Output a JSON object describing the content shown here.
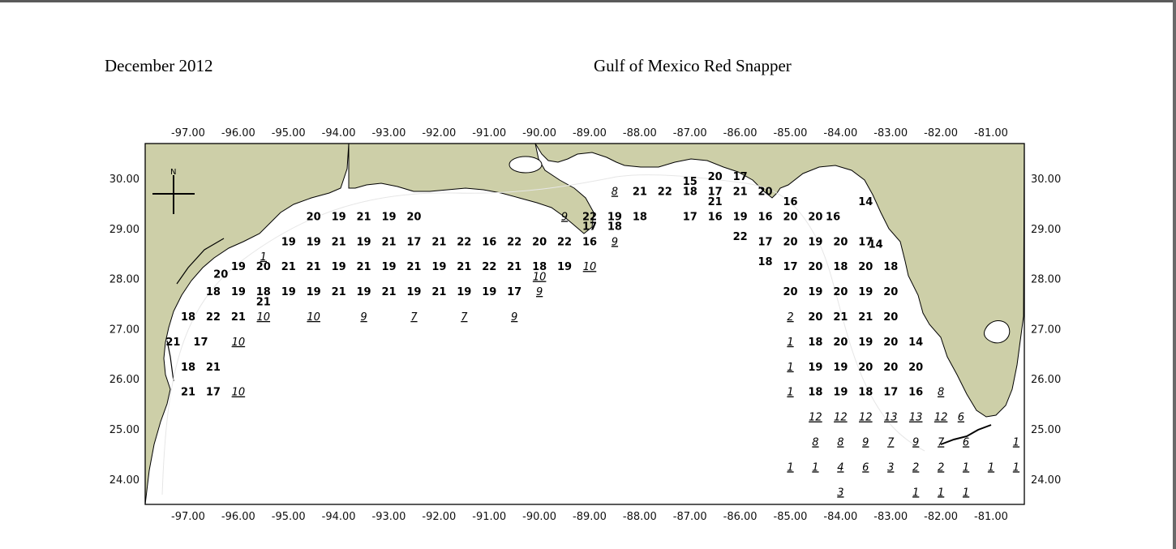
{
  "header": {
    "date": "December 2012",
    "title": "Gulf of Mexico Red Snapper"
  },
  "colors": {
    "land": "#cdcfa8",
    "water": "#ffffff",
    "text": "#000000",
    "frame": "#000000"
  },
  "axes": {
    "lon_ticks": [
      "-97.00",
      "-96.00",
      "-95.00",
      "-94.00",
      "-93.00",
      "-92.00",
      "-91.00",
      "-90.00",
      "-89.00",
      "-88.00",
      "-87.00",
      "-86.00",
      "-85.00",
      "-84.00",
      "-83.00",
      "-82.00",
      "-81.00"
    ],
    "lat_ticks": [
      "30.00",
      "29.00",
      "28.00",
      "27.00",
      "26.00",
      "25.00",
      "24.00"
    ]
  },
  "compass": {
    "label": "N"
  },
  "observations": [
    {
      "lon": -88.5,
      "lat": 29.75,
      "v": "8",
      "it": true
    },
    {
      "lon": -88.0,
      "lat": 29.75,
      "v": "21"
    },
    {
      "lon": -87.5,
      "lat": 29.75,
      "v": "22"
    },
    {
      "lon": -87.0,
      "lat": 29.75,
      "v": "18"
    },
    {
      "lon": -87.0,
      "lat": 29.95,
      "v": "15"
    },
    {
      "lon": -86.5,
      "lat": 29.75,
      "v": "17"
    },
    {
      "lon": -86.5,
      "lat": 29.55,
      "v": "21"
    },
    {
      "lon": -86.5,
      "lat": 30.05,
      "v": "20"
    },
    {
      "lon": -86.0,
      "lat": 29.75,
      "v": "21"
    },
    {
      "lon": -86.0,
      "lat": 30.05,
      "v": "17"
    },
    {
      "lon": -85.5,
      "lat": 29.75,
      "v": "20"
    },
    {
      "lon": -85.0,
      "lat": 29.55,
      "v": "16"
    },
    {
      "lon": -83.5,
      "lat": 29.55,
      "v": "14"
    },
    {
      "lon": -94.5,
      "lat": 29.25,
      "v": "20"
    },
    {
      "lon": -94.0,
      "lat": 29.25,
      "v": "19"
    },
    {
      "lon": -93.5,
      "lat": 29.25,
      "v": "21"
    },
    {
      "lon": -93.0,
      "lat": 29.25,
      "v": "19"
    },
    {
      "lon": -92.5,
      "lat": 29.25,
      "v": "20"
    },
    {
      "lon": -89.5,
      "lat": 29.25,
      "v": "9",
      "it": true
    },
    {
      "lon": -89.0,
      "lat": 29.25,
      "v": "22"
    },
    {
      "lon": -88.5,
      "lat": 29.25,
      "v": "19"
    },
    {
      "lon": -88.0,
      "lat": 29.25,
      "v": "18"
    },
    {
      "lon": -89.0,
      "lat": 29.05,
      "v": "17"
    },
    {
      "lon": -88.5,
      "lat": 29.05,
      "v": "18"
    },
    {
      "lon": -87.0,
      "lat": 29.25,
      "v": "17"
    },
    {
      "lon": -86.5,
      "lat": 29.25,
      "v": "16"
    },
    {
      "lon": -86.0,
      "lat": 29.25,
      "v": "19"
    },
    {
      "lon": -85.5,
      "lat": 29.25,
      "v": "16"
    },
    {
      "lon": -85.0,
      "lat": 29.25,
      "v": "20"
    },
    {
      "lon": -84.5,
      "lat": 29.25,
      "v": "20"
    },
    {
      "lon": -84.15,
      "lat": 29.25,
      "v": "16"
    },
    {
      "lon": -95.0,
      "lat": 28.75,
      "v": "19"
    },
    {
      "lon": -94.5,
      "lat": 28.75,
      "v": "19"
    },
    {
      "lon": -94.0,
      "lat": 28.75,
      "v": "21"
    },
    {
      "lon": -93.5,
      "lat": 28.75,
      "v": "19"
    },
    {
      "lon": -93.0,
      "lat": 28.75,
      "v": "21"
    },
    {
      "lon": -92.5,
      "lat": 28.75,
      "v": "17"
    },
    {
      "lon": -92.0,
      "lat": 28.75,
      "v": "21"
    },
    {
      "lon": -91.5,
      "lat": 28.75,
      "v": "22"
    },
    {
      "lon": -91.0,
      "lat": 28.75,
      "v": "16"
    },
    {
      "lon": -90.5,
      "lat": 28.75,
      "v": "22"
    },
    {
      "lon": -90.0,
      "lat": 28.75,
      "v": "20"
    },
    {
      "lon": -89.5,
      "lat": 28.75,
      "v": "22"
    },
    {
      "lon": -89.0,
      "lat": 28.75,
      "v": "16"
    },
    {
      "lon": -88.5,
      "lat": 28.75,
      "v": "9",
      "it": true
    },
    {
      "lon": -86.0,
      "lat": 28.85,
      "v": "22"
    },
    {
      "lon": -85.5,
      "lat": 28.75,
      "v": "17"
    },
    {
      "lon": -85.0,
      "lat": 28.75,
      "v": "20"
    },
    {
      "lon": -84.5,
      "lat": 28.75,
      "v": "19"
    },
    {
      "lon": -84.0,
      "lat": 28.75,
      "v": "20"
    },
    {
      "lon": -83.5,
      "lat": 28.75,
      "v": "17"
    },
    {
      "lon": -83.3,
      "lat": 28.7,
      "v": "14"
    },
    {
      "lon": -95.5,
      "lat": 28.45,
      "v": "1",
      "it": true
    },
    {
      "lon": -96.0,
      "lat": 28.25,
      "v": "19"
    },
    {
      "lon": -96.35,
      "lat": 28.1,
      "v": "20"
    },
    {
      "lon": -95.5,
      "lat": 28.25,
      "v": "20"
    },
    {
      "lon": -95.0,
      "lat": 28.25,
      "v": "21"
    },
    {
      "lon": -94.5,
      "lat": 28.25,
      "v": "21"
    },
    {
      "lon": -94.0,
      "lat": 28.25,
      "v": "19"
    },
    {
      "lon": -93.5,
      "lat": 28.25,
      "v": "21"
    },
    {
      "lon": -93.0,
      "lat": 28.25,
      "v": "19"
    },
    {
      "lon": -92.5,
      "lat": 28.25,
      "v": "21"
    },
    {
      "lon": -92.0,
      "lat": 28.25,
      "v": "19"
    },
    {
      "lon": -91.5,
      "lat": 28.25,
      "v": "21"
    },
    {
      "lon": -91.0,
      "lat": 28.25,
      "v": "22"
    },
    {
      "lon": -90.5,
      "lat": 28.25,
      "v": "21"
    },
    {
      "lon": -90.0,
      "lat": 28.25,
      "v": "18"
    },
    {
      "lon": -90.0,
      "lat": 28.05,
      "v": "10",
      "it": true
    },
    {
      "lon": -89.5,
      "lat": 28.25,
      "v": "19"
    },
    {
      "lon": -89.0,
      "lat": 28.25,
      "v": "10",
      "it": true
    },
    {
      "lon": -85.5,
      "lat": 28.35,
      "v": "18"
    },
    {
      "lon": -85.0,
      "lat": 28.25,
      "v": "17"
    },
    {
      "lon": -84.5,
      "lat": 28.25,
      "v": "20"
    },
    {
      "lon": -84.0,
      "lat": 28.25,
      "v": "18"
    },
    {
      "lon": -83.5,
      "lat": 28.25,
      "v": "20"
    },
    {
      "lon": -83.0,
      "lat": 28.25,
      "v": "18"
    },
    {
      "lon": -96.5,
      "lat": 27.75,
      "v": "18"
    },
    {
      "lon": -96.0,
      "lat": 27.75,
      "v": "19"
    },
    {
      "lon": -95.5,
      "lat": 27.75,
      "v": "18"
    },
    {
      "lon": -95.5,
      "lat": 27.55,
      "v": "21"
    },
    {
      "lon": -95.0,
      "lat": 27.75,
      "v": "19"
    },
    {
      "lon": -94.5,
      "lat": 27.75,
      "v": "19"
    },
    {
      "lon": -94.0,
      "lat": 27.75,
      "v": "21"
    },
    {
      "lon": -93.5,
      "lat": 27.75,
      "v": "19"
    },
    {
      "lon": -93.0,
      "lat": 27.75,
      "v": "21"
    },
    {
      "lon": -92.5,
      "lat": 27.75,
      "v": "19"
    },
    {
      "lon": -92.0,
      "lat": 27.75,
      "v": "21"
    },
    {
      "lon": -91.5,
      "lat": 27.75,
      "v": "19"
    },
    {
      "lon": -91.0,
      "lat": 27.75,
      "v": "19"
    },
    {
      "lon": -90.5,
      "lat": 27.75,
      "v": "17"
    },
    {
      "lon": -90.0,
      "lat": 27.75,
      "v": "9",
      "it": true
    },
    {
      "lon": -85.0,
      "lat": 27.75,
      "v": "20"
    },
    {
      "lon": -84.5,
      "lat": 27.75,
      "v": "19"
    },
    {
      "lon": -84.0,
      "lat": 27.75,
      "v": "20"
    },
    {
      "lon": -83.5,
      "lat": 27.75,
      "v": "19"
    },
    {
      "lon": -83.0,
      "lat": 27.75,
      "v": "20"
    },
    {
      "lon": -97.0,
      "lat": 27.25,
      "v": "18"
    },
    {
      "lon": -96.5,
      "lat": 27.25,
      "v": "22"
    },
    {
      "lon": -96.0,
      "lat": 27.25,
      "v": "21"
    },
    {
      "lon": -95.5,
      "lat": 27.25,
      "v": "10",
      "it": true
    },
    {
      "lon": -94.5,
      "lat": 27.25,
      "v": "10",
      "it": true
    },
    {
      "lon": -93.5,
      "lat": 27.25,
      "v": "9",
      "it": true
    },
    {
      "lon": -92.5,
      "lat": 27.25,
      "v": "7",
      "it": true
    },
    {
      "lon": -91.5,
      "lat": 27.25,
      "v": "7",
      "it": true
    },
    {
      "lon": -90.5,
      "lat": 27.25,
      "v": "9",
      "it": true
    },
    {
      "lon": -85.0,
      "lat": 27.25,
      "v": "2",
      "it": true
    },
    {
      "lon": -84.5,
      "lat": 27.25,
      "v": "20"
    },
    {
      "lon": -84.0,
      "lat": 27.25,
      "v": "21"
    },
    {
      "lon": -83.5,
      "lat": 27.25,
      "v": "21"
    },
    {
      "lon": -83.0,
      "lat": 27.25,
      "v": "20"
    },
    {
      "lon": -97.3,
      "lat": 26.75,
      "v": "21"
    },
    {
      "lon": -96.75,
      "lat": 26.75,
      "v": "17"
    },
    {
      "lon": -96.0,
      "lat": 26.75,
      "v": "10",
      "it": true
    },
    {
      "lon": -85.0,
      "lat": 26.75,
      "v": "1",
      "it": true
    },
    {
      "lon": -84.5,
      "lat": 26.75,
      "v": "18"
    },
    {
      "lon": -84.0,
      "lat": 26.75,
      "v": "20"
    },
    {
      "lon": -83.5,
      "lat": 26.75,
      "v": "19"
    },
    {
      "lon": -83.0,
      "lat": 26.75,
      "v": "20"
    },
    {
      "lon": -82.5,
      "lat": 26.75,
      "v": "14"
    },
    {
      "lon": -97.0,
      "lat": 26.25,
      "v": "18"
    },
    {
      "lon": -96.5,
      "lat": 26.25,
      "v": "21"
    },
    {
      "lon": -85.0,
      "lat": 26.25,
      "v": "1",
      "it": true
    },
    {
      "lon": -84.5,
      "lat": 26.25,
      "v": "19"
    },
    {
      "lon": -84.0,
      "lat": 26.25,
      "v": "19"
    },
    {
      "lon": -83.5,
      "lat": 26.25,
      "v": "20"
    },
    {
      "lon": -83.0,
      "lat": 26.25,
      "v": "20"
    },
    {
      "lon": -82.5,
      "lat": 26.25,
      "v": "20"
    },
    {
      "lon": -97.0,
      "lat": 25.75,
      "v": "21"
    },
    {
      "lon": -96.5,
      "lat": 25.75,
      "v": "17"
    },
    {
      "lon": -96.0,
      "lat": 25.75,
      "v": "10",
      "it": true
    },
    {
      "lon": -85.0,
      "lat": 25.75,
      "v": "1",
      "it": true
    },
    {
      "lon": -84.5,
      "lat": 25.75,
      "v": "18"
    },
    {
      "lon": -84.0,
      "lat": 25.75,
      "v": "19"
    },
    {
      "lon": -83.5,
      "lat": 25.75,
      "v": "18"
    },
    {
      "lon": -83.0,
      "lat": 25.75,
      "v": "17"
    },
    {
      "lon": -82.5,
      "lat": 25.75,
      "v": "16"
    },
    {
      "lon": -82.0,
      "lat": 25.75,
      "v": "8",
      "it": true
    },
    {
      "lon": -84.5,
      "lat": 25.25,
      "v": "12",
      "it": true
    },
    {
      "lon": -84.0,
      "lat": 25.25,
      "v": "12",
      "it": true
    },
    {
      "lon": -83.5,
      "lat": 25.25,
      "v": "12",
      "it": true
    },
    {
      "lon": -83.0,
      "lat": 25.25,
      "v": "13",
      "it": true
    },
    {
      "lon": -82.5,
      "lat": 25.25,
      "v": "13",
      "it": true
    },
    {
      "lon": -82.0,
      "lat": 25.25,
      "v": "12",
      "it": true
    },
    {
      "lon": -81.6,
      "lat": 25.25,
      "v": "6",
      "it": true
    },
    {
      "lon": -84.5,
      "lat": 24.75,
      "v": "8",
      "it": true
    },
    {
      "lon": -84.0,
      "lat": 24.75,
      "v": "8",
      "it": true
    },
    {
      "lon": -83.5,
      "lat": 24.75,
      "v": "9",
      "it": true
    },
    {
      "lon": -83.0,
      "lat": 24.75,
      "v": "7",
      "it": true
    },
    {
      "lon": -82.5,
      "lat": 24.75,
      "v": "9",
      "it": true
    },
    {
      "lon": -82.0,
      "lat": 24.75,
      "v": "7",
      "it": true
    },
    {
      "lon": -81.5,
      "lat": 24.75,
      "v": "6",
      "it": true
    },
    {
      "lon": -80.5,
      "lat": 24.75,
      "v": "1",
      "it": true
    },
    {
      "lon": -85.0,
      "lat": 24.25,
      "v": "1",
      "it": true
    },
    {
      "lon": -84.5,
      "lat": 24.25,
      "v": "1",
      "it": true
    },
    {
      "lon": -84.0,
      "lat": 24.25,
      "v": "4",
      "it": true
    },
    {
      "lon": -83.5,
      "lat": 24.25,
      "v": "6",
      "it": true
    },
    {
      "lon": -83.0,
      "lat": 24.25,
      "v": "3",
      "it": true
    },
    {
      "lon": -82.5,
      "lat": 24.25,
      "v": "2",
      "it": true
    },
    {
      "lon": -82.0,
      "lat": 24.25,
      "v": "2",
      "it": true
    },
    {
      "lon": -81.5,
      "lat": 24.25,
      "v": "1",
      "it": true
    },
    {
      "lon": -81.0,
      "lat": 24.25,
      "v": "1",
      "it": true
    },
    {
      "lon": -80.5,
      "lat": 24.25,
      "v": "1",
      "it": true
    },
    {
      "lon": -84.0,
      "lat": 23.75,
      "v": "3",
      "it": true
    },
    {
      "lon": -82.5,
      "lat": 23.75,
      "v": "1",
      "it": true
    },
    {
      "lon": -82.0,
      "lat": 23.75,
      "v": "1",
      "it": true
    },
    {
      "lon": -81.5,
      "lat": 23.75,
      "v": "1",
      "it": true
    }
  ]
}
